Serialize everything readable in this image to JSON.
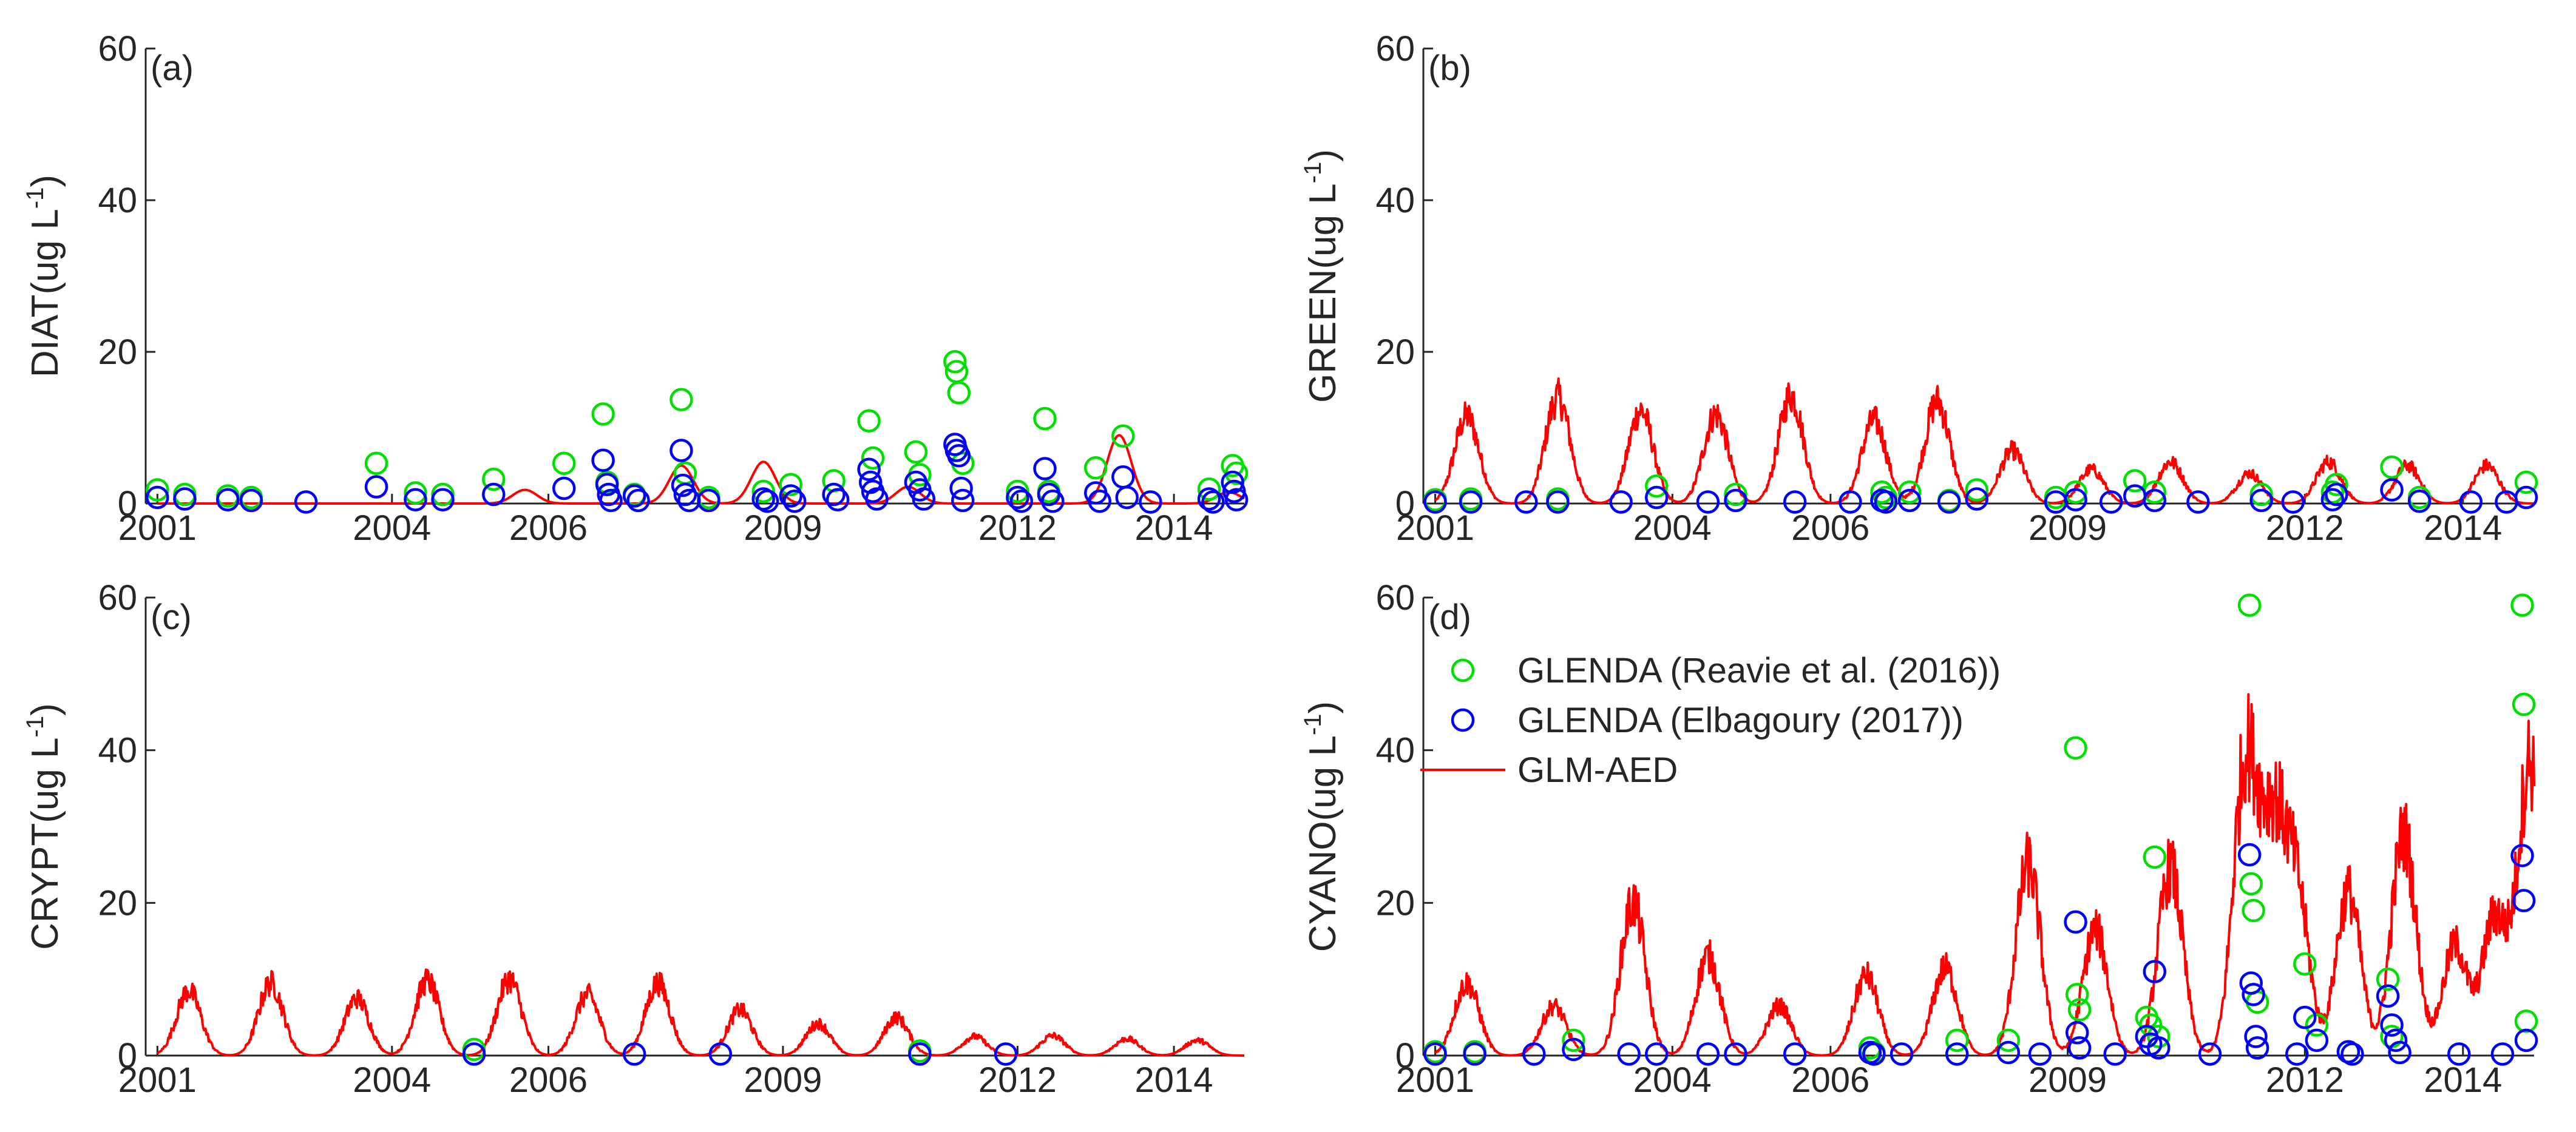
{
  "figure": {
    "x_ticks": [
      "2001",
      "2004",
      "2006",
      "2009",
      "2012",
      "2014"
    ],
    "x_tick_years": [
      2001,
      2004,
      2006,
      2009,
      2012,
      2014
    ],
    "x_range": [
      2000.85,
      2014.9
    ],
    "y_ticks": [
      "0",
      "20",
      "40",
      "60"
    ],
    "y_tick_values": [
      0,
      20,
      40,
      60
    ],
    "y_range": [
      0,
      60
    ],
    "unit_label": "(ug L",
    "unit_superscript": "-1",
    "unit_close": ")",
    "colors": {
      "reavie": "#00e000",
      "elbagoury": "#0000ff",
      "model": "#ff0000"
    }
  },
  "legend": {
    "placement": "top-left of panel (d)",
    "items": [
      {
        "label": "GLENDA (Reavie et al. (2016))",
        "series": "reavie"
      },
      {
        "label": "GLENDA (Elbagoury (2017))",
        "series": "elbagoury"
      },
      {
        "label": "GLM-AED",
        "series": "model"
      }
    ]
  },
  "chart_data": [
    {
      "type": "line+scatter",
      "panel": "(a)",
      "ylabel": "DIAT",
      "xlabel": "",
      "ylim": [
        0,
        60
      ],
      "model_peaks": [
        [
          2005.7,
          1.8
        ],
        [
          2007.7,
          5.0
        ],
        [
          2008.75,
          5.5
        ],
        [
          2010.6,
          2.2
        ],
        [
          2013.3,
          9.0
        ],
        [
          2014.7,
          1.5
        ]
      ],
      "obs_reavie": [
        [
          2001.0,
          1.8
        ],
        [
          2001.35,
          1.2
        ],
        [
          2001.9,
          1.0
        ],
        [
          2002.2,
          0.8
        ],
        [
          2003.8,
          5.3
        ],
        [
          2004.3,
          1.4
        ],
        [
          2004.65,
          1.2
        ],
        [
          2005.3,
          3.2
        ],
        [
          2006.2,
          5.3
        ],
        [
          2006.7,
          11.8
        ],
        [
          2006.75,
          2.8
        ],
        [
          2007.1,
          1.2
        ],
        [
          2007.7,
          13.7
        ],
        [
          2007.75,
          4.0
        ],
        [
          2008.05,
          0.8
        ],
        [
          2008.75,
          1.6
        ],
        [
          2009.1,
          2.5
        ],
        [
          2009.65,
          3.0
        ],
        [
          2010.1,
          10.9
        ],
        [
          2010.15,
          6.0
        ],
        [
          2010.7,
          6.8
        ],
        [
          2010.75,
          3.8
        ],
        [
          2011.2,
          18.7
        ],
        [
          2011.22,
          17.4
        ],
        [
          2011.25,
          14.6
        ],
        [
          2011.3,
          5.3
        ],
        [
          2012.0,
          1.6
        ],
        [
          2012.35,
          11.2
        ],
        [
          2012.4,
          1.6
        ],
        [
          2013.0,
          4.7
        ],
        [
          2013.35,
          8.9
        ],
        [
          2014.45,
          1.9
        ],
        [
          2014.75,
          5.0
        ],
        [
          2014.8,
          4.0
        ]
      ],
      "obs_elbagoury": [
        [
          2001.0,
          0.8
        ],
        [
          2001.35,
          0.6
        ],
        [
          2001.9,
          0.5
        ],
        [
          2002.2,
          0.4
        ],
        [
          2002.9,
          0.2
        ],
        [
          2003.8,
          2.2
        ],
        [
          2004.3,
          0.5
        ],
        [
          2004.65,
          0.5
        ],
        [
          2005.3,
          1.2
        ],
        [
          2006.2,
          2.0
        ],
        [
          2006.7,
          5.7
        ],
        [
          2006.75,
          2.5
        ],
        [
          2006.77,
          1.2
        ],
        [
          2006.8,
          0.4
        ],
        [
          2007.1,
          1.0
        ],
        [
          2007.15,
          0.4
        ],
        [
          2007.7,
          7.0
        ],
        [
          2007.72,
          2.4
        ],
        [
          2007.75,
          1.2
        ],
        [
          2007.8,
          0.4
        ],
        [
          2008.05,
          0.4
        ],
        [
          2008.75,
          0.6
        ],
        [
          2008.8,
          0.3
        ],
        [
          2009.1,
          1.0
        ],
        [
          2009.15,
          0.3
        ],
        [
          2009.65,
          1.2
        ],
        [
          2009.7,
          0.5
        ],
        [
          2010.1,
          4.5
        ],
        [
          2010.12,
          2.8
        ],
        [
          2010.15,
          1.6
        ],
        [
          2010.2,
          0.6
        ],
        [
          2010.7,
          2.8
        ],
        [
          2010.75,
          1.8
        ],
        [
          2010.8,
          0.6
        ],
        [
          2011.2,
          7.8
        ],
        [
          2011.22,
          7.0
        ],
        [
          2011.25,
          6.3
        ],
        [
          2011.28,
          2.0
        ],
        [
          2011.3,
          0.4
        ],
        [
          2012.0,
          0.8
        ],
        [
          2012.05,
          0.3
        ],
        [
          2012.35,
          4.6
        ],
        [
          2012.4,
          1.2
        ],
        [
          2012.45,
          0.3
        ],
        [
          2013.0,
          1.4
        ],
        [
          2013.05,
          0.3
        ],
        [
          2013.35,
          3.5
        ],
        [
          2013.4,
          0.8
        ],
        [
          2013.7,
          0.2
        ],
        [
          2014.45,
          0.6
        ],
        [
          2014.5,
          0.2
        ],
        [
          2014.75,
          2.8
        ],
        [
          2014.77,
          1.6
        ],
        [
          2014.8,
          0.5
        ]
      ]
    },
    {
      "type": "line+scatter",
      "panel": "(b)",
      "ylabel": "GREEN",
      "xlabel": "",
      "ylim": [
        0,
        60
      ],
      "model_peaks": [
        [
          2001.4,
          11.5
        ],
        [
          2002.55,
          14.0
        ],
        [
          2003.6,
          12.3
        ],
        [
          2004.55,
          11.8
        ],
        [
          2005.5,
          14.3
        ],
        [
          2006.55,
          11.0
        ],
        [
          2007.35,
          13.5
        ],
        [
          2008.3,
          7.0
        ],
        [
          2009.3,
          4.5
        ],
        [
          2010.3,
          5.5
        ],
        [
          2011.3,
          4.0
        ],
        [
          2012.3,
          5.5
        ],
        [
          2013.3,
          5.0
        ],
        [
          2014.3,
          5.0
        ]
      ],
      "obs_reavie": [
        [
          2001.0,
          0.5
        ],
        [
          2001.45,
          0.6
        ],
        [
          2002.55,
          0.6
        ],
        [
          2003.8,
          2.3
        ],
        [
          2004.8,
          1.2
        ],
        [
          2006.65,
          1.5
        ],
        [
          2006.7,
          0.8
        ],
        [
          2007.0,
          1.5
        ],
        [
          2007.5,
          0.4
        ],
        [
          2007.85,
          1.8
        ],
        [
          2008.85,
          0.8
        ],
        [
          2009.1,
          1.5
        ],
        [
          2009.85,
          3.0
        ],
        [
          2010.1,
          1.5
        ],
        [
          2011.45,
          1.2
        ],
        [
          2012.35,
          1.5
        ],
        [
          2012.4,
          2.5
        ],
        [
          2013.1,
          4.8
        ],
        [
          2013.45,
          0.8
        ],
        [
          2014.8,
          2.8
        ]
      ],
      "obs_elbagoury": [
        [
          2001.0,
          0.2
        ],
        [
          2001.45,
          0.2
        ],
        [
          2002.15,
          0.2
        ],
        [
          2002.55,
          0.2
        ],
        [
          2003.35,
          0.2
        ],
        [
          2003.8,
          0.8
        ],
        [
          2004.45,
          0.2
        ],
        [
          2004.8,
          0.4
        ],
        [
          2005.55,
          0.2
        ],
        [
          2006.25,
          0.2
        ],
        [
          2006.65,
          0.4
        ],
        [
          2006.7,
          0.2
        ],
        [
          2007.0,
          0.4
        ],
        [
          2007.5,
          0.2
        ],
        [
          2007.85,
          0.6
        ],
        [
          2008.85,
          0.2
        ],
        [
          2009.1,
          0.5
        ],
        [
          2009.55,
          0.2
        ],
        [
          2009.85,
          1.0
        ],
        [
          2010.1,
          0.4
        ],
        [
          2010.65,
          0.2
        ],
        [
          2011.45,
          0.4
        ],
        [
          2011.85,
          0.2
        ],
        [
          2012.35,
          0.5
        ],
        [
          2012.4,
          1.2
        ],
        [
          2013.1,
          1.8
        ],
        [
          2013.45,
          0.3
        ],
        [
          2014.1,
          0.2
        ],
        [
          2014.55,
          0.2
        ],
        [
          2014.8,
          0.8
        ]
      ]
    },
    {
      "type": "line+scatter",
      "panel": "(c)",
      "ylabel": "CRYPT",
      "xlabel": "",
      "ylim": [
        0,
        60
      ],
      "model_peaks": [
        [
          2001.4,
          8.5
        ],
        [
          2002.45,
          9.5
        ],
        [
          2003.55,
          7.5
        ],
        [
          2004.45,
          9.8
        ],
        [
          2005.5,
          10.0
        ],
        [
          2006.5,
          8.0
        ],
        [
          2007.4,
          9.5
        ],
        [
          2008.45,
          6.0
        ],
        [
          2009.45,
          4.2
        ],
        [
          2010.45,
          5.0
        ],
        [
          2011.45,
          2.5
        ],
        [
          2012.45,
          2.6
        ],
        [
          2013.4,
          2.2
        ],
        [
          2014.3,
          2.0
        ]
      ],
      "obs_reavie": [
        [
          2005.05,
          0.8
        ],
        [
          2010.75,
          0.6
        ]
      ],
      "obs_elbagoury": [
        [
          2005.05,
          0.2
        ],
        [
          2007.1,
          0.2
        ],
        [
          2008.2,
          0.2
        ],
        [
          2010.75,
          0.2
        ],
        [
          2011.85,
          0.2
        ]
      ]
    },
    {
      "type": "line+scatter",
      "panel": "(d)",
      "ylabel": "CYANO",
      "xlabel": "",
      "ylim": [
        0,
        60
      ],
      "model_peaks": [
        [
          2001.4,
          9.5
        ],
        [
          2002.5,
          6.5
        ],
        [
          2003.5,
          20.0
        ],
        [
          2004.45,
          13.0
        ],
        [
          2005.35,
          6.5
        ],
        [
          2006.45,
          10.5
        ],
        [
          2007.45,
          11.5
        ],
        [
          2008.5,
          25.0
        ],
        [
          2009.35,
          16.5
        ],
        [
          2010.3,
          24.5
        ],
        [
          2011.25,
          38.0
        ],
        [
          2011.6,
          28.0
        ],
        [
          2011.9,
          20.5
        ],
        [
          2012.55,
          21.5
        ],
        [
          2013.25,
          29.0
        ],
        [
          2013.9,
          14.5
        ],
        [
          2014.4,
          18.0
        ],
        [
          2014.85,
          38.5
        ]
      ],
      "obs_reavie": [
        [
          2001.0,
          0.5
        ],
        [
          2001.5,
          0.5
        ],
        [
          2002.75,
          2.0
        ],
        [
          2006.5,
          1.0
        ],
        [
          2006.55,
          0.4
        ],
        [
          2007.6,
          2.0
        ],
        [
          2008.25,
          2.0
        ],
        [
          2009.1,
          40.3
        ],
        [
          2009.12,
          8.0
        ],
        [
          2009.15,
          6.0
        ],
        [
          2010.0,
          5.0
        ],
        [
          2010.05,
          4.0
        ],
        [
          2010.1,
          26.0
        ],
        [
          2010.15,
          2.5
        ],
        [
          2011.3,
          59.0
        ],
        [
          2011.32,
          22.5
        ],
        [
          2011.35,
          19.0
        ],
        [
          2011.4,
          7.0
        ],
        [
          2012.0,
          12.0
        ],
        [
          2012.15,
          4.0
        ],
        [
          2012.55,
          0.5
        ],
        [
          2013.05,
          10.0
        ],
        [
          2013.1,
          2.5
        ],
        [
          2014.75,
          59.0
        ],
        [
          2014.77,
          46.0
        ],
        [
          2014.8,
          4.5
        ]
      ],
      "obs_elbagoury": [
        [
          2001.0,
          0.2
        ],
        [
          2001.5,
          0.2
        ],
        [
          2002.25,
          0.2
        ],
        [
          2002.75,
          0.8
        ],
        [
          2003.45,
          0.2
        ],
        [
          2003.8,
          0.2
        ],
        [
          2004.45,
          0.2
        ],
        [
          2004.8,
          0.2
        ],
        [
          2005.55,
          0.2
        ],
        [
          2006.5,
          0.4
        ],
        [
          2006.55,
          0.2
        ],
        [
          2006.9,
          0.2
        ],
        [
          2007.6,
          0.2
        ],
        [
          2008.25,
          0.4
        ],
        [
          2008.65,
          0.2
        ],
        [
          2009.1,
          17.5
        ],
        [
          2009.12,
          3.0
        ],
        [
          2009.15,
          1.0
        ],
        [
          2009.6,
          0.2
        ],
        [
          2010.0,
          2.5
        ],
        [
          2010.05,
          1.5
        ],
        [
          2010.1,
          11.0
        ],
        [
          2010.15,
          1.0
        ],
        [
          2010.8,
          0.2
        ],
        [
          2011.3,
          26.3
        ],
        [
          2011.32,
          9.5
        ],
        [
          2011.35,
          8.0
        ],
        [
          2011.38,
          2.5
        ],
        [
          2011.4,
          1.0
        ],
        [
          2011.9,
          0.2
        ],
        [
          2012.0,
          5.0
        ],
        [
          2012.15,
          2.0
        ],
        [
          2012.55,
          0.5
        ],
        [
          2012.6,
          0.2
        ],
        [
          2013.05,
          7.8
        ],
        [
          2013.1,
          4.0
        ],
        [
          2013.15,
          2.0
        ],
        [
          2013.2,
          0.4
        ],
        [
          2013.95,
          0.2
        ],
        [
          2014.5,
          0.2
        ],
        [
          2014.75,
          26.2
        ],
        [
          2014.77,
          20.3
        ],
        [
          2014.8,
          2.0
        ]
      ]
    }
  ]
}
